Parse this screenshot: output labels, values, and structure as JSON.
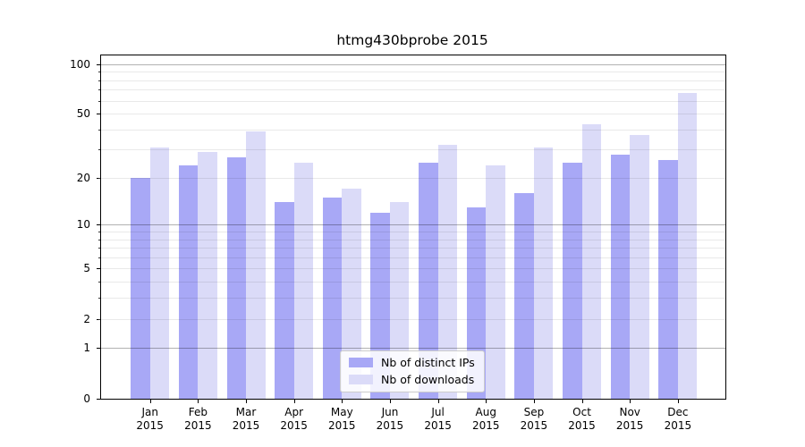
{
  "title": "htmg430bprobe 2015",
  "chart_data": {
    "type": "bar",
    "title": "htmg430bprobe 2015",
    "categories": [
      "Jan 2015",
      "Feb 2015",
      "Mar 2015",
      "Apr 2015",
      "May 2015",
      "Jun 2015",
      "Jul 2015",
      "Aug 2015",
      "Sep 2015",
      "Oct 2015",
      "Nov 2015",
      "Dec 2015"
    ],
    "series": [
      {
        "name": "Nb of distinct IPs",
        "color": "#a8a8f6",
        "values": [
          20,
          24,
          27,
          14,
          15,
          12,
          25,
          13,
          16,
          25,
          28,
          26
        ]
      },
      {
        "name": "Nb of downloads",
        "color": "#dbdbf8",
        "values": [
          31,
          29,
          39,
          25,
          17,
          14,
          32,
          24,
          31,
          43,
          37,
          67
        ]
      }
    ],
    "xlabel": "",
    "ylabel": "",
    "y_scale": "log1p",
    "y_ticks": [
      100,
      50,
      20,
      10,
      5,
      2,
      1,
      0
    ],
    "y_minor_ticks": [
      2,
      3,
      4,
      6,
      7,
      8,
      9,
      20,
      30,
      40,
      60,
      70,
      80,
      90
    ],
    "y_major_gridlines": [
      1,
      10,
      100
    ],
    "ylim": [
      0,
      117
    ],
    "grid": "both",
    "legend_position": "lower center"
  },
  "colors": {
    "bar_ips": "#a8a8f6",
    "bar_downloads": "#dbdbf8",
    "axis": "#000000",
    "background": "#ffffff"
  }
}
